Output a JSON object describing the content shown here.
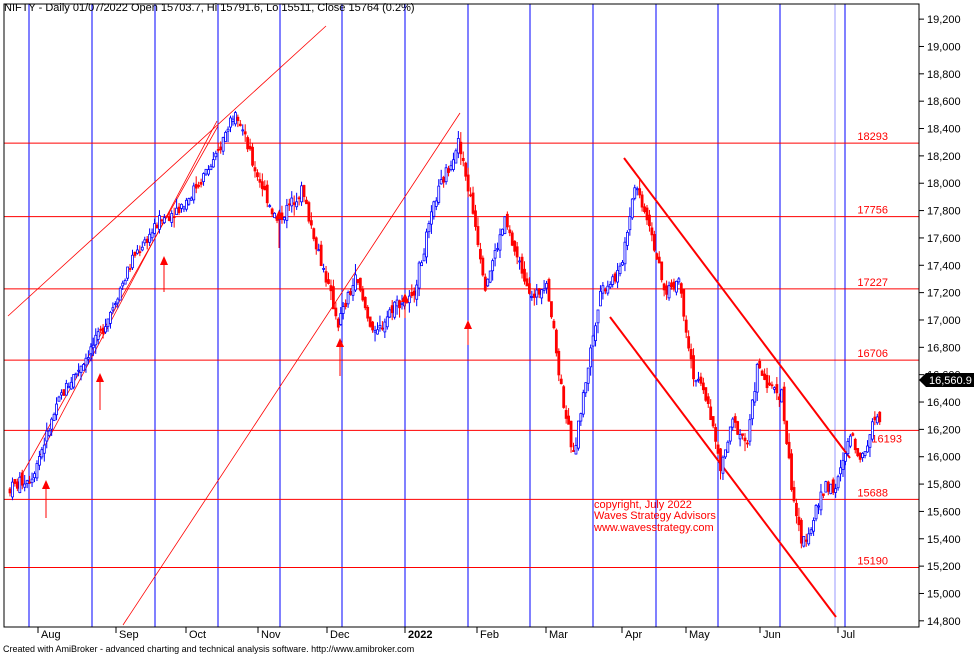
{
  "header": {
    "title": "NIFTY - Daily 01/07/2022 Open 15703.7, Hi 15791.6, Lo 15511, Close 15764 (0.2%)"
  },
  "footer": {
    "text": "Created with AmiBroker - advanced charting and technical analysis software. http://www.amibroker.com"
  },
  "watermark": {
    "line1": "copyright, July 2022",
    "line2": "Waves Strategy Advisors",
    "line3": "www.wavesstrategy.com",
    "color": "#ff0000"
  },
  "chart_data": {
    "type": "candlestick",
    "title": "NIFTY - Daily 01/07/2022 Open 15703.7, Hi 15791.6, Lo 15511, Close 15764 (0.2%)",
    "ylim": [
      14700,
      19250
    ],
    "y_ticks": [
      14800,
      15000,
      15200,
      15400,
      15600,
      15800,
      16000,
      16200,
      16400,
      16600,
      16800,
      17000,
      17200,
      17400,
      17600,
      17800,
      18000,
      18200,
      18400,
      18600,
      18800,
      19000,
      19200
    ],
    "y_tick_labels": [
      "14,800",
      "15,000",
      "15,200",
      "15,400",
      "15,600",
      "15,800",
      "16,000",
      "16,200",
      "16,400",
      "16,600",
      "16,800",
      "17,000",
      "17,200",
      "17,400",
      "17,600",
      "17,800",
      "18,000",
      "18,200",
      "18,400",
      "18,600",
      "18,800",
      "19,000",
      "19,200"
    ],
    "x_months": [
      "Aug",
      "Sep",
      "Oct",
      "Nov",
      "Dec",
      "2022",
      "Feb",
      "Mar",
      "Apr",
      "May",
      "Jun",
      "Jul"
    ],
    "last_price_label": "16,560.9",
    "up_color": "#0000ff",
    "down_color": "#ff0000",
    "horizontal_levels": [
      {
        "value": 18293,
        "label": "18293"
      },
      {
        "value": 17756,
        "label": "17756"
      },
      {
        "value": 17227,
        "label": "17227"
      },
      {
        "value": 16706,
        "label": "16706"
      },
      {
        "value": 16193,
        "label": "16193"
      },
      {
        "value": 15688,
        "label": "15688"
      },
      {
        "value": 15190,
        "label": "15190"
      }
    ],
    "line_color": "#ff0000",
    "cycle_line_color": "#0000ff",
    "grid": false,
    "anchors": [
      {
        "i": 0,
        "v": 15760
      },
      {
        "i": 10,
        "v": 15860
      },
      {
        "i": 22,
        "v": 16450
      },
      {
        "i": 38,
        "v": 16900
      },
      {
        "i": 52,
        "v": 17480
      },
      {
        "i": 62,
        "v": 17720
      },
      {
        "i": 72,
        "v": 17850
      },
      {
        "i": 85,
        "v": 18180
      },
      {
        "i": 93,
        "v": 18560
      },
      {
        "i": 100,
        "v": 18150
      },
      {
        "i": 110,
        "v": 17720
      },
      {
        "i": 120,
        "v": 17950
      },
      {
        "i": 127,
        "v": 17500
      },
      {
        "i": 135,
        "v": 16980
      },
      {
        "i": 142,
        "v": 17300
      },
      {
        "i": 150,
        "v": 16880
      },
      {
        "i": 158,
        "v": 17120
      },
      {
        "i": 165,
        "v": 17150
      },
      {
        "i": 175,
        "v": 17900
      },
      {
        "i": 184,
        "v": 18300
      },
      {
        "i": 190,
        "v": 17800
      },
      {
        "i": 195,
        "v": 17260
      },
      {
        "i": 203,
        "v": 17720
      },
      {
        "i": 208,
        "v": 17450
      },
      {
        "i": 215,
        "v": 17150
      },
      {
        "i": 220,
        "v": 17300
      },
      {
        "i": 226,
        "v": 16500
      },
      {
        "i": 231,
        "v": 16000
      },
      {
        "i": 236,
        "v": 16560
      },
      {
        "i": 242,
        "v": 17220
      },
      {
        "i": 250,
        "v": 17350
      },
      {
        "i": 256,
        "v": 18000
      },
      {
        "i": 262,
        "v": 17720
      },
      {
        "i": 268,
        "v": 17200
      },
      {
        "i": 274,
        "v": 17300
      },
      {
        "i": 280,
        "v": 16600
      },
      {
        "i": 286,
        "v": 16400
      },
      {
        "i": 291,
        "v": 15900
      },
      {
        "i": 296,
        "v": 16250
      },
      {
        "i": 302,
        "v": 16100
      },
      {
        "i": 306,
        "v": 16650
      },
      {
        "i": 312,
        "v": 16500
      },
      {
        "i": 316,
        "v": 16450
      },
      {
        "i": 320,
        "v": 15800
      },
      {
        "i": 324,
        "v": 15350
      },
      {
        "i": 328,
        "v": 15500
      },
      {
        "i": 334,
        "v": 15800
      },
      {
        "i": 338,
        "v": 15760
      },
      {
        "i": 344,
        "v": 16150
      },
      {
        "i": 349,
        "v": 15980
      },
      {
        "i": 354,
        "v": 16300
      }
    ]
  }
}
